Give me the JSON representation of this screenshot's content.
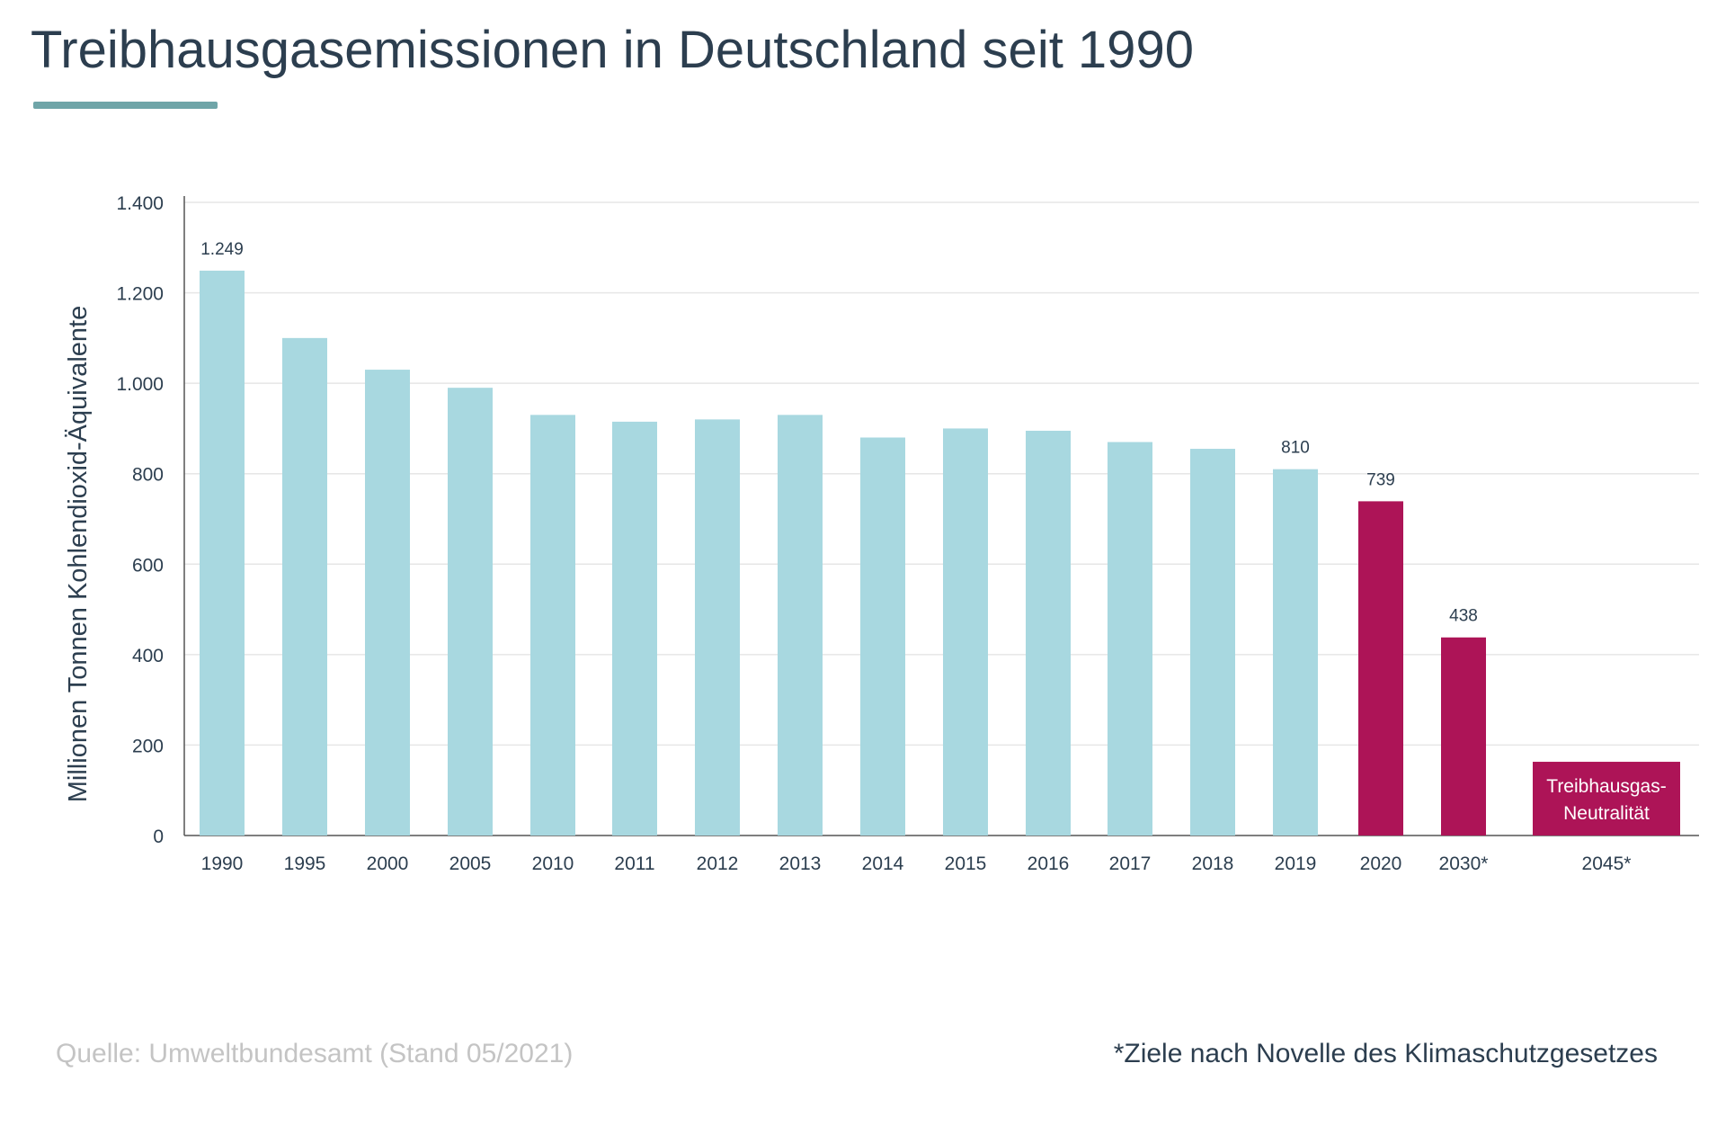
{
  "title": "Treibhausgasemissionen in Deutschland seit 1990",
  "colors": {
    "historic": "#a8d8e0",
    "target": "#ad1457",
    "title": "#2c3e4f",
    "accent_underline": "#6fa5a8",
    "grid": "#e6e6e6",
    "axis": "#555555",
    "source_text": "#c4c4c4"
  },
  "source": "Quelle: Umweltbundesamt (Stand 05/2021)",
  "footnote": "*Ziele nach Novelle des Klimaschutzgesetzes",
  "chart_data": {
    "type": "bar",
    "title": "Treibhausgasemissionen in Deutschland seit 1990",
    "xlabel": "",
    "ylabel": "Millionen Tonnen Kohlendioxid-Äquivalente",
    "ylim": [
      0,
      1400
    ],
    "yticks": [
      0,
      200,
      400,
      600,
      800,
      1000,
      1200,
      1400
    ],
    "ytick_labels": [
      "0",
      "200",
      "400",
      "600",
      "800",
      "1.000",
      "1.200",
      "1.400"
    ],
    "grid": true,
    "categories": [
      "1990",
      "1995",
      "2000",
      "2005",
      "2010",
      "2011",
      "2012",
      "2013",
      "2014",
      "2015",
      "2016",
      "2017",
      "2018",
      "2019",
      "2020",
      "2030*",
      "2045*"
    ],
    "values": [
      1249,
      1100,
      1030,
      990,
      930,
      915,
      920,
      930,
      880,
      900,
      895,
      870,
      855,
      810,
      739,
      438,
      163
    ],
    "bar_kind": [
      "historic",
      "historic",
      "historic",
      "historic",
      "historic",
      "historic",
      "historic",
      "historic",
      "historic",
      "historic",
      "historic",
      "historic",
      "historic",
      "historic",
      "target",
      "target",
      "target"
    ],
    "data_labels": {
      "1990": "1.249",
      "2019": "810",
      "2020": "739",
      "2030*": "438"
    },
    "in_bar_label": {
      "category": "2045*",
      "lines": [
        "Treibhausgas-",
        "Neutralität"
      ]
    }
  }
}
